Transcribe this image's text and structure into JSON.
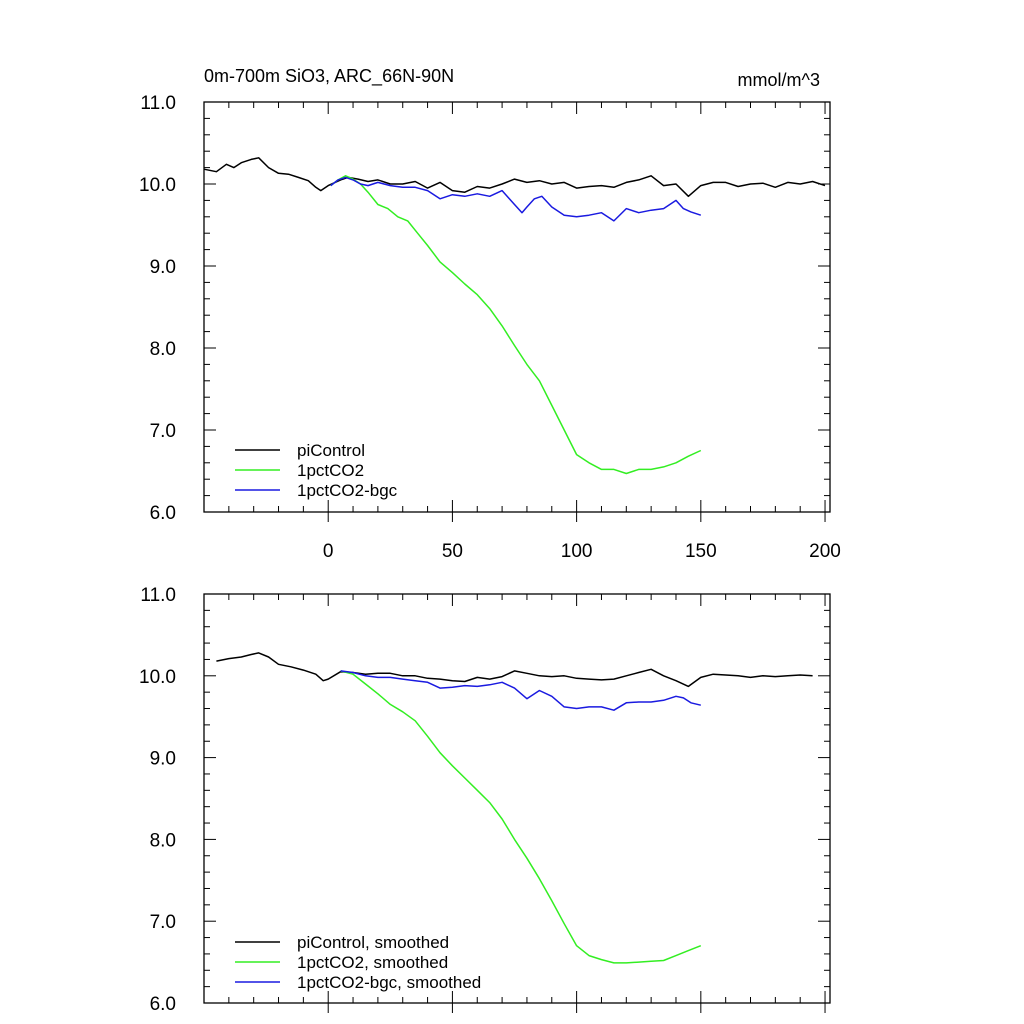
{
  "figure": {
    "title_left": "0m-700m SiO3, ARC_66N-90N",
    "title_right": "mmol/m^3"
  },
  "chart_data": [
    {
      "type": "line",
      "title": "0m-700m SiO3, ARC_66N-90N",
      "units": "mmol/m^3",
      "xlim": [
        -50,
        202
      ],
      "ylim": [
        6.0,
        11.0
      ],
      "xticks": [
        0,
        50,
        100,
        150,
        200
      ],
      "xtick_labels": [
        "0",
        "50",
        "100",
        "150",
        "200"
      ],
      "yticks": [
        6.0,
        7.0,
        8.0,
        9.0,
        10.0,
        11.0
      ],
      "ytick_labels": [
        "6.0",
        "7.0",
        "8.0",
        "9.0",
        "10.0",
        "11.0"
      ],
      "show_xtick_labels": true,
      "grid": false,
      "legend_position": "bottom-left",
      "series": [
        {
          "name": "piControl",
          "color": "#000000",
          "x": [
            -50,
            -45,
            -41,
            -38,
            -35,
            -31,
            -28,
            -24,
            -20,
            -16,
            -12,
            -8,
            -5,
            -3,
            0,
            5,
            8,
            12,
            16,
            20,
            25,
            30,
            35,
            40,
            45,
            50,
            55,
            60,
            65,
            70,
            75,
            80,
            85,
            90,
            95,
            100,
            105,
            110,
            115,
            120,
            125,
            130,
            135,
            140,
            145,
            150,
            155,
            160,
            165,
            170,
            175,
            180,
            185,
            190,
            195,
            200
          ],
          "y": [
            10.18,
            10.15,
            10.24,
            10.2,
            10.26,
            10.3,
            10.32,
            10.2,
            10.13,
            10.12,
            10.08,
            10.04,
            9.96,
            9.92,
            9.98,
            10.05,
            10.08,
            10.06,
            10.03,
            10.05,
            10.0,
            10.0,
            10.03,
            9.95,
            10.02,
            9.92,
            9.9,
            9.97,
            9.95,
            10.0,
            10.06,
            10.02,
            10.04,
            10.0,
            10.02,
            9.95,
            9.97,
            9.98,
            9.96,
            10.02,
            10.05,
            10.1,
            9.98,
            10.0,
            9.85,
            9.98,
            10.02,
            10.02,
            9.97,
            10.0,
            10.01,
            9.96,
            10.02,
            10.0,
            10.03,
            9.98
          ]
        },
        {
          "name": "1pctCO2",
          "color": "#33ee22",
          "x": [
            1,
            4,
            7,
            10,
            13,
            16,
            20,
            24,
            28,
            32,
            36,
            40,
            45,
            50,
            55,
            60,
            65,
            70,
            75,
            80,
            85,
            90,
            95,
            100,
            105,
            110,
            115,
            120,
            125,
            130,
            135,
            140,
            145,
            150
          ],
          "y": [
            9.98,
            10.05,
            10.1,
            10.06,
            10.0,
            9.9,
            9.75,
            9.7,
            9.6,
            9.55,
            9.4,
            9.25,
            9.05,
            8.92,
            8.78,
            8.65,
            8.48,
            8.27,
            8.03,
            7.8,
            7.6,
            7.3,
            7.0,
            6.7,
            6.6,
            6.52,
            6.52,
            6.47,
            6.52,
            6.52,
            6.55,
            6.6,
            6.68,
            6.75
          ]
        },
        {
          "name": "1pctCO2-bgc",
          "color": "#1a1ae0",
          "x": [
            1,
            4,
            7,
            10,
            13,
            16,
            20,
            25,
            30,
            35,
            40,
            45,
            50,
            55,
            60,
            65,
            70,
            75,
            78,
            80,
            83,
            86,
            90,
            95,
            100,
            105,
            110,
            115,
            120,
            125,
            130,
            135,
            140,
            143,
            146,
            150
          ],
          "y": [
            9.98,
            10.05,
            10.08,
            10.05,
            10.0,
            9.98,
            10.02,
            9.98,
            9.96,
            9.96,
            9.92,
            9.82,
            9.87,
            9.85,
            9.88,
            9.85,
            9.92,
            9.75,
            9.65,
            9.72,
            9.82,
            9.85,
            9.72,
            9.62,
            9.6,
            9.62,
            9.65,
            9.55,
            9.7,
            9.65,
            9.68,
            9.7,
            9.8,
            9.7,
            9.66,
            9.62
          ]
        }
      ]
    },
    {
      "type": "line",
      "xlim": [
        -50,
        202
      ],
      "ylim": [
        6.0,
        11.0
      ],
      "xticks": [
        0,
        50,
        100,
        150,
        200
      ],
      "yticks": [
        6.0,
        7.0,
        8.0,
        9.0,
        10.0,
        11.0
      ],
      "ytick_labels": [
        "6.0",
        "7.0",
        "8.0",
        "9.0",
        "10.0",
        "11.0"
      ],
      "show_xtick_labels": false,
      "grid": false,
      "legend_position": "bottom-left",
      "series": [
        {
          "name": "piControl, smoothed",
          "color": "#000000",
          "x": [
            -45,
            -40,
            -35,
            -31,
            -28,
            -24,
            -20,
            -15,
            -10,
            -5,
            -2,
            0,
            5,
            10,
            15,
            20,
            25,
            30,
            35,
            40,
            45,
            50,
            55,
            60,
            65,
            70,
            75,
            80,
            85,
            90,
            95,
            100,
            105,
            110,
            115,
            120,
            125,
            130,
            135,
            140,
            145,
            150,
            155,
            160,
            165,
            170,
            175,
            180,
            185,
            190,
            195
          ],
          "y": [
            10.18,
            10.21,
            10.23,
            10.26,
            10.28,
            10.23,
            10.14,
            10.11,
            10.07,
            10.02,
            9.94,
            9.96,
            10.05,
            10.04,
            10.02,
            10.03,
            10.03,
            10.0,
            10.0,
            9.97,
            9.96,
            9.94,
            9.93,
            9.98,
            9.96,
            9.99,
            10.06,
            10.03,
            10.0,
            9.99,
            10.0,
            9.97,
            9.96,
            9.95,
            9.96,
            10.0,
            10.04,
            10.08,
            10.0,
            9.94,
            9.87,
            9.98,
            10.02,
            10.01,
            10.0,
            9.98,
            10.0,
            9.99,
            10.0,
            10.01,
            10.0
          ]
        },
        {
          "name": "1pctCO2, smoothed",
          "color": "#33ee22",
          "x": [
            5,
            10,
            15,
            20,
            25,
            30,
            35,
            40,
            45,
            50,
            55,
            60,
            65,
            70,
            75,
            80,
            85,
            90,
            95,
            100,
            105,
            110,
            115,
            120,
            125,
            130,
            135,
            140,
            145,
            150
          ],
          "y": [
            10.06,
            10.02,
            9.9,
            9.78,
            9.65,
            9.56,
            9.45,
            9.26,
            9.06,
            8.9,
            8.75,
            8.6,
            8.45,
            8.25,
            8.0,
            7.77,
            7.52,
            7.25,
            6.97,
            6.7,
            6.58,
            6.53,
            6.49,
            6.49,
            6.5,
            6.51,
            6.52,
            6.58,
            6.64,
            6.7
          ]
        },
        {
          "name": "1pctCO2-bgc, smoothed",
          "color": "#1a1ae0",
          "x": [
            5,
            10,
            15,
            20,
            25,
            30,
            35,
            40,
            45,
            50,
            55,
            60,
            65,
            70,
            75,
            80,
            85,
            90,
            95,
            100,
            105,
            110,
            115,
            120,
            125,
            130,
            135,
            140,
            143,
            146,
            150
          ],
          "y": [
            10.06,
            10.04,
            10.0,
            9.98,
            9.98,
            9.96,
            9.94,
            9.92,
            9.85,
            9.86,
            9.88,
            9.87,
            9.89,
            9.92,
            9.85,
            9.72,
            9.82,
            9.75,
            9.62,
            9.6,
            9.62,
            9.62,
            9.58,
            9.67,
            9.68,
            9.68,
            9.7,
            9.75,
            9.73,
            9.67,
            9.64
          ]
        }
      ]
    }
  ]
}
